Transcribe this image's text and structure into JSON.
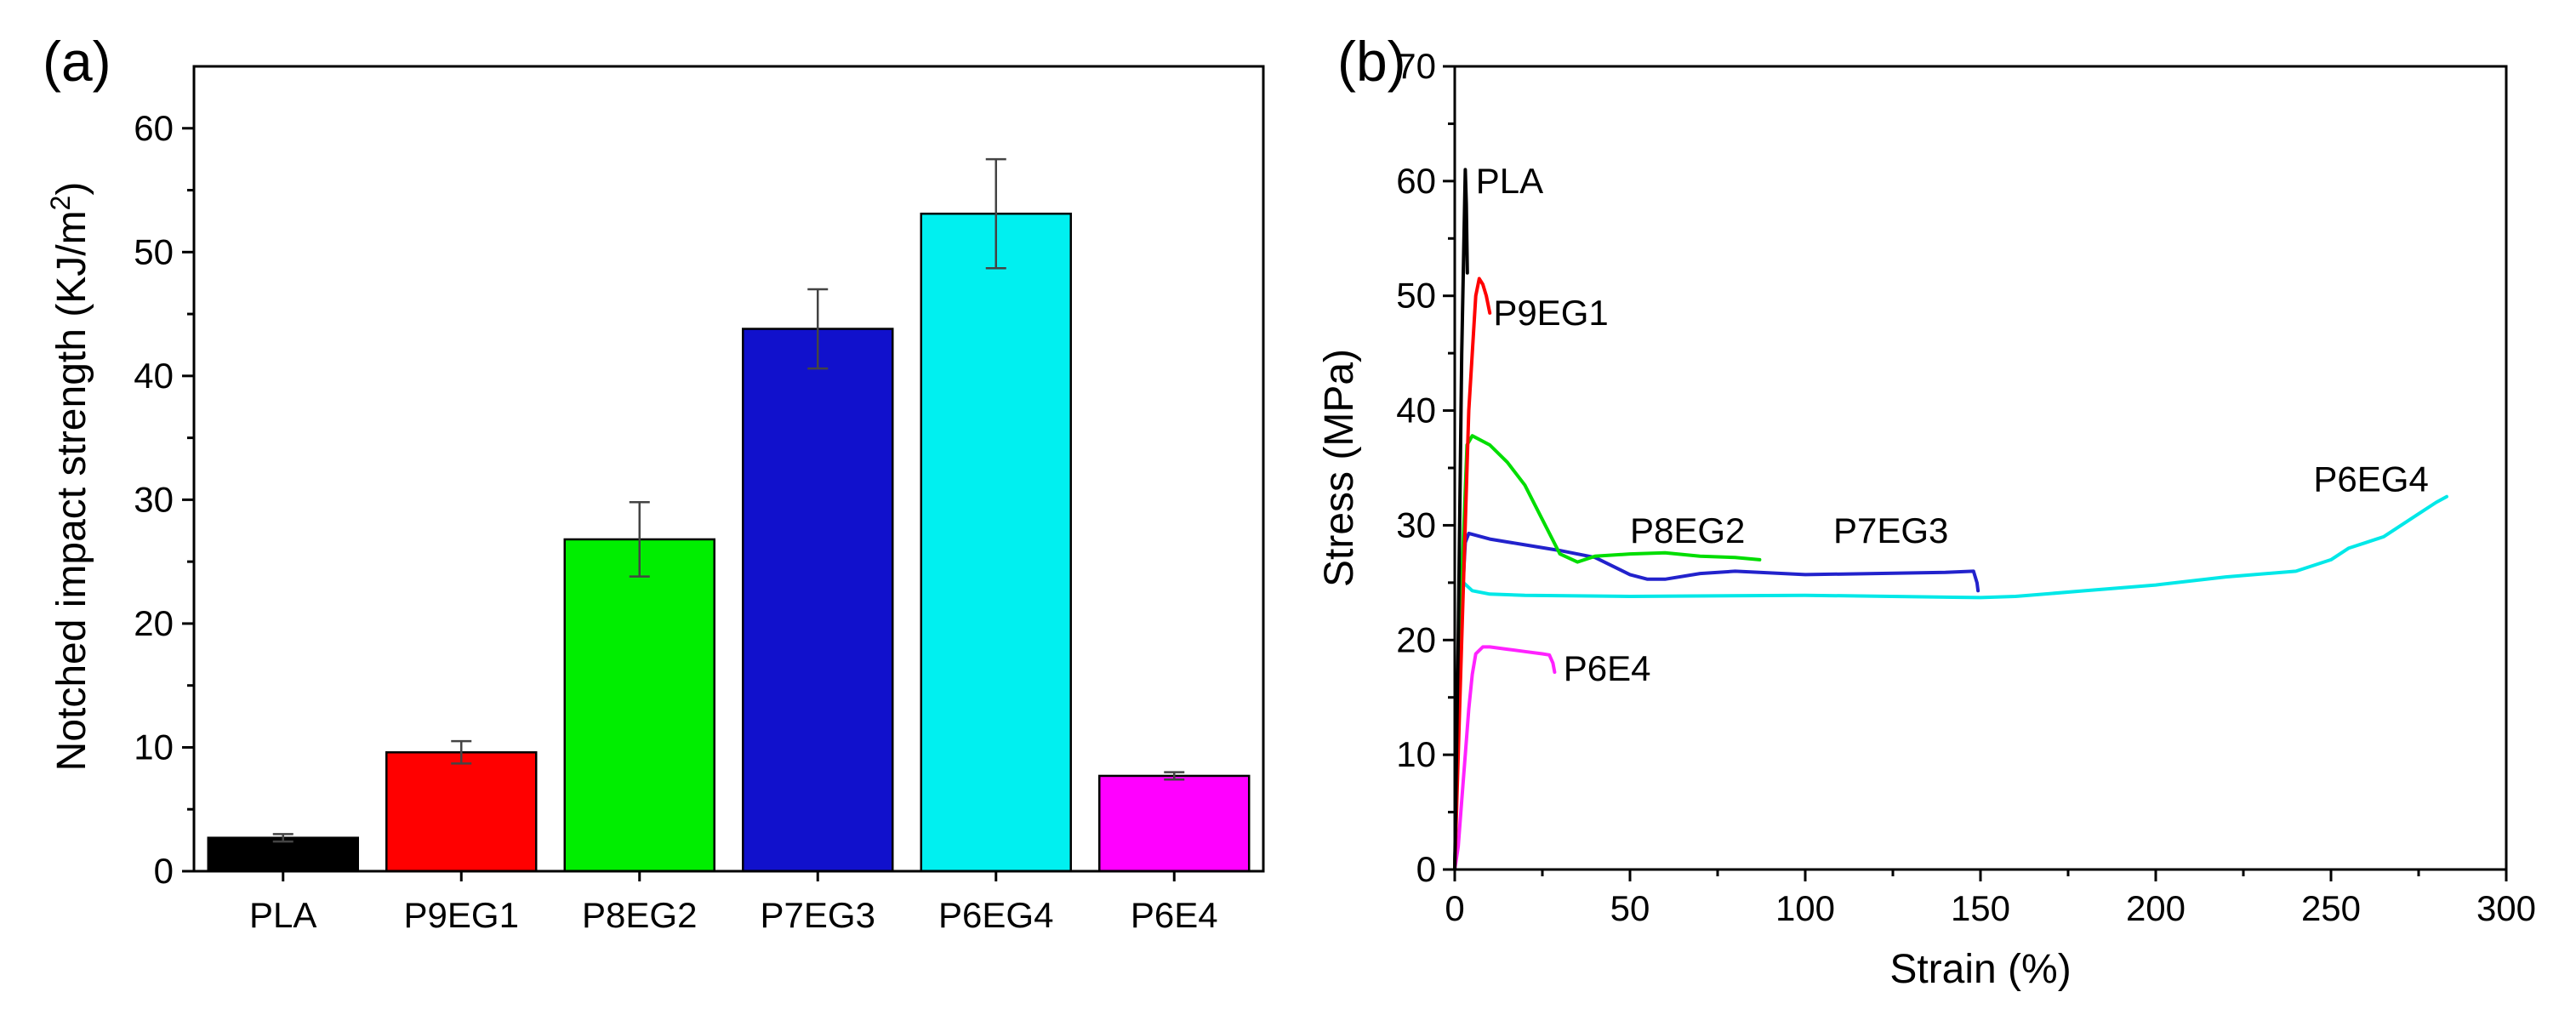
{
  "chart_data": [
    {
      "panel": "(a)",
      "type": "bar",
      "ylabel": "Notched impact strength (KJ/m",
      "ylabel_sup": "2",
      "ylabel_close": ")",
      "xlabel": "",
      "ylim": [
        0,
        65
      ],
      "yticks": [
        0,
        10,
        20,
        30,
        40,
        50,
        60
      ],
      "categories": [
        "PLA",
        "P9EG1",
        "P8EG2",
        "P7EG3",
        "P6EG4",
        "P6E4"
      ],
      "values": [
        2.7,
        9.6,
        26.8,
        43.8,
        53.1,
        7.7
      ],
      "errors": [
        0.3,
        0.9,
        3.0,
        3.2,
        4.4,
        0.3
      ],
      "colors": [
        "#000000",
        "#ff0000",
        "#00ee00",
        "#1111cc",
        "#00f0f0",
        "#ff00ff"
      ]
    },
    {
      "panel": "(b)",
      "type": "line",
      "xlabel": "Strain (%)",
      "ylabel": "Stress (MPa)",
      "xlim": [
        0,
        300
      ],
      "ylim": [
        0,
        70
      ],
      "xticks": [
        0,
        50,
        100,
        150,
        200,
        250,
        300
      ],
      "yticks": [
        0,
        10,
        20,
        30,
        40,
        50,
        60,
        70
      ],
      "series": [
        {
          "name": "PLA",
          "color": "#000000",
          "label_at": [
            6,
            60
          ],
          "x": [
            0,
            1,
            2,
            3,
            3.3,
            3.6
          ],
          "y": [
            0,
            20,
            45,
            61,
            58,
            52
          ]
        },
        {
          "name": "P9EG1",
          "color": "#ff0000",
          "label_at": [
            11,
            48.5
          ],
          "x": [
            0,
            2,
            4,
            6,
            7,
            8,
            9,
            10
          ],
          "y": [
            0,
            20,
            40,
            50,
            51.5,
            51,
            50,
            48.5
          ]
        },
        {
          "name": "P8EG2",
          "color": "#00dd00",
          "label_at": [
            50,
            29.5
          ],
          "x": [
            0,
            2,
            3.5,
            5,
            10,
            15,
            20,
            25,
            30,
            35,
            40,
            50,
            60,
            70,
            80,
            87
          ],
          "y": [
            0,
            25,
            37,
            37.8,
            37,
            35.5,
            33.5,
            30.5,
            27.5,
            26.8,
            27.3,
            27.5,
            27.6,
            27.3,
            27.2,
            27
          ]
        },
        {
          "name": "P7EG3",
          "color": "#2222cc",
          "label_at": [
            108,
            29.5
          ],
          "x": [
            0,
            1.5,
            3,
            4,
            10,
            20,
            30,
            40,
            50,
            55,
            60,
            70,
            80,
            100,
            120,
            140,
            148,
            149,
            149.3
          ],
          "y": [
            0,
            20,
            28.5,
            29.3,
            28.8,
            28.3,
            27.8,
            27.2,
            25.7,
            25.3,
            25.3,
            25.8,
            26,
            25.7,
            25.8,
            25.9,
            26,
            25,
            24.3
          ]
        },
        {
          "name": "P6EG4",
          "color": "#00e8e8",
          "label_at": [
            245,
            34
          ],
          "x": [
            0,
            1.5,
            2.5,
            5,
            10,
            20,
            50,
            100,
            150,
            160,
            180,
            200,
            220,
            240,
            250,
            255,
            260,
            265,
            270,
            275,
            280,
            283
          ],
          "y": [
            0,
            20,
            25,
            24.3,
            24,
            23.9,
            23.8,
            23.9,
            23.7,
            23.8,
            24.3,
            24.8,
            25.5,
            26,
            27,
            28,
            28.5,
            29,
            30,
            31,
            32,
            32.5
          ]
        },
        {
          "name": "P6E4",
          "color": "#ff22ff",
          "label_at": [
            31,
            17.5
          ],
          "x": [
            0,
            1,
            2,
            3,
            4,
            5,
            6,
            8,
            10,
            15,
            20,
            25,
            27,
            28,
            28.5
          ],
          "y": [
            0,
            2,
            6,
            10,
            14,
            17,
            18.8,
            19.4,
            19.4,
            19.2,
            19,
            18.8,
            18.7,
            18,
            17.2
          ]
        }
      ]
    }
  ]
}
